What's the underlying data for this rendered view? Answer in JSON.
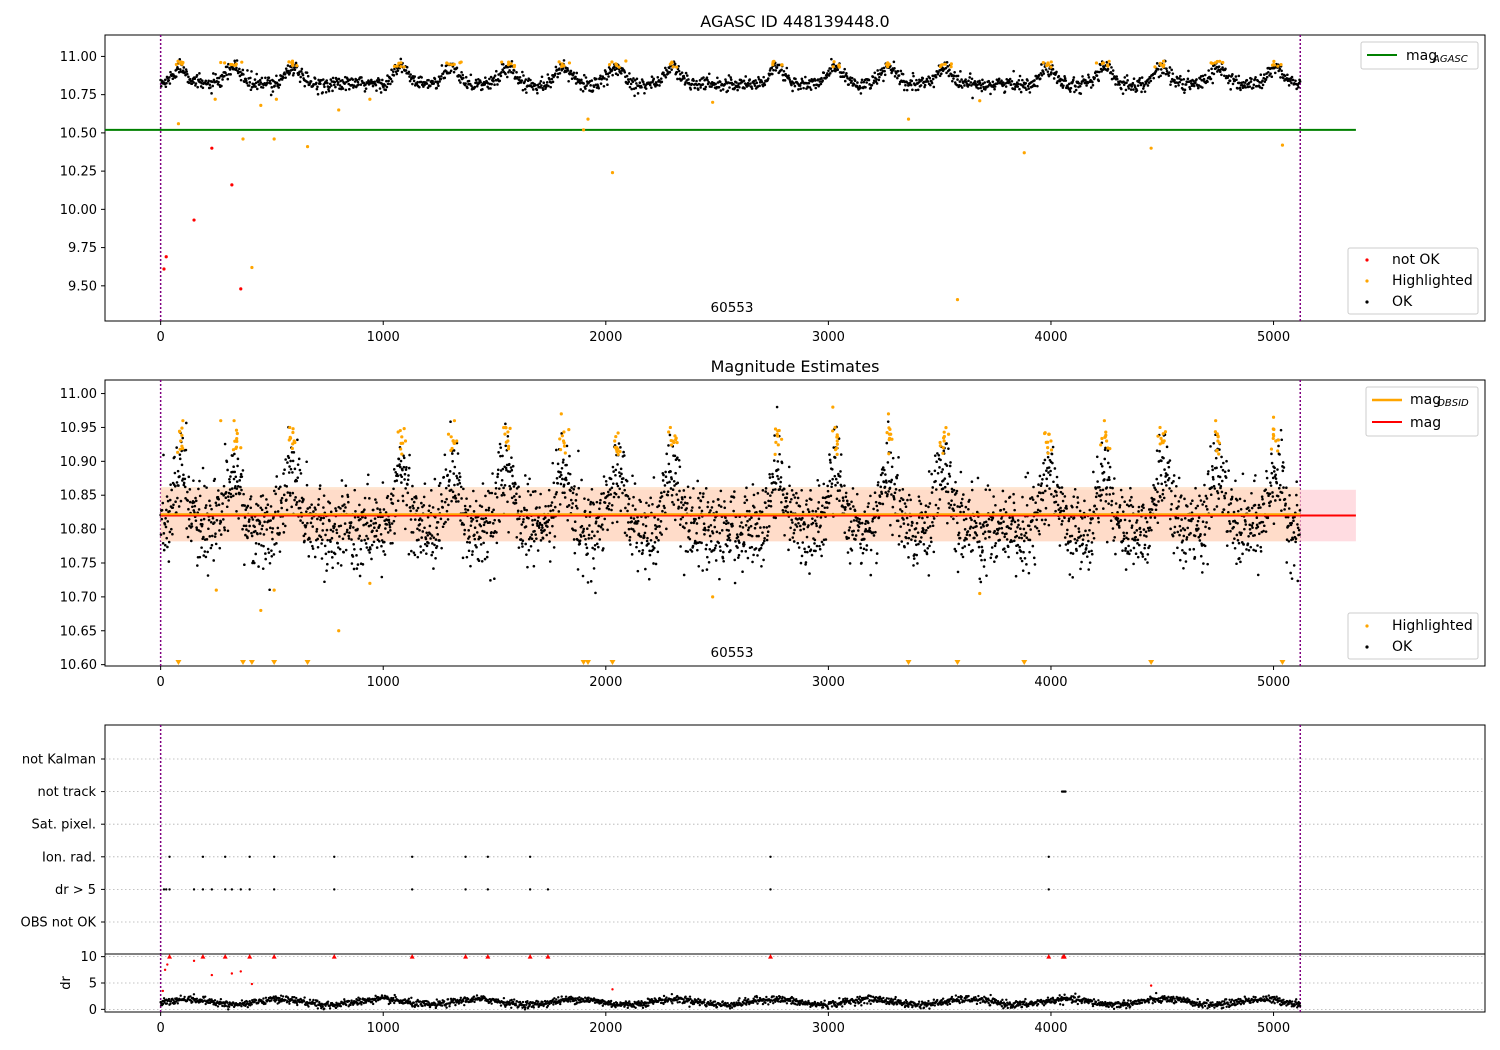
{
  "colors": {
    "ok": "#000000",
    "highlighted": "#ffa500",
    "not_ok": "#ff0000",
    "agasc_line": "#008000",
    "obsid_line": "#ffa500",
    "mag_line": "#ff0000",
    "mag_band": "#ffc0c8",
    "obsid_band": "#ffdcc0",
    "vline": "#800080",
    "grid": "#b0b0b0"
  },
  "x_ticks": [
    "0",
    "1000",
    "2000",
    "3000",
    "4000",
    "5000"
  ],
  "chart_data": [
    {
      "type": "scatter",
      "title": "AGASC ID 448139448.0",
      "xlabel": "",
      "ylabel": "",
      "xlim": [
        -250,
        5950
      ],
      "ylim": [
        9.27,
        11.14
      ],
      "y_ticks": [
        "9.50",
        "9.75",
        "10.00",
        "10.25",
        "10.50",
        "10.75",
        "11.00"
      ],
      "annotation": "60553",
      "obsid_bounds": [
        0,
        5120
      ],
      "hlines": [
        {
          "name": "mag_AGASC",
          "y": 10.52,
          "x": [
            -250,
            5370
          ]
        }
      ],
      "legend_lines": [
        {
          "base": "mag",
          "sub": "AGASC"
        }
      ],
      "legend_points": [
        "not OK",
        "Highlighted",
        "OK"
      ],
      "series": [
        {
          "name": "not OK",
          "x": [
            15,
            25,
            150,
            230,
            320,
            360
          ],
          "y": [
            9.61,
            9.69,
            9.93,
            10.4,
            10.16,
            9.48
          ]
        },
        {
          "name": "Highlighted",
          "x": [
            80,
            100,
            245,
            270,
            340,
            370,
            410,
            450,
            510,
            520,
            660,
            800,
            940,
            1900,
            1920,
            2030,
            2060,
            2480,
            3360,
            3580,
            3680,
            3880,
            4000,
            4450,
            5040
          ],
          "y": [
            10.56,
            10.96,
            10.72,
            10.96,
            10.95,
            10.46,
            9.62,
            10.68,
            10.46,
            10.72,
            10.41,
            10.65,
            10.72,
            10.52,
            10.59,
            10.24,
            10.93,
            10.7,
            10.59,
            9.41,
            10.71,
            10.37,
            10.93,
            10.4,
            10.42
          ]
        },
        {
          "name": "OK",
          "x": [
            0,
            5120
          ],
          "mean": 10.82,
          "spread": 0.045,
          "periodic_amplitude": 0.05,
          "peaks_x": [
            90,
            330,
            590,
            1080,
            1310,
            1560,
            1810,
            2050,
            2300,
            2770,
            3030,
            3270,
            3520,
            3990,
            4240,
            4500,
            4750,
            5010
          ]
        }
      ]
    },
    {
      "type": "scatter",
      "title": "Magnitude Estimates",
      "xlabel": "",
      "ylabel": "",
      "xlim": [
        -250,
        5950
      ],
      "ylim": [
        10.598,
        11.02
      ],
      "y_ticks": [
        "10.60",
        "10.65",
        "10.70",
        "10.75",
        "10.80",
        "10.85",
        "10.90",
        "10.95",
        "11.00"
      ],
      "annotation": "60553",
      "obsid_bounds": [
        0,
        5120
      ],
      "hlines": [
        {
          "name": "mag_OBSID",
          "y": 10.822,
          "x": [
            0,
            5120
          ]
        },
        {
          "name": "mag",
          "y": 10.82,
          "x": [
            0,
            5370
          ]
        }
      ],
      "bands": [
        {
          "name": "mag",
          "y": [
            10.782,
            10.858
          ],
          "x": [
            0,
            5370
          ]
        },
        {
          "name": "mag_OBSID",
          "y": [
            10.782,
            10.862
          ],
          "x": [
            0,
            5120
          ]
        }
      ],
      "legend_lines": [
        {
          "base": "mag",
          "sub": "OBSID"
        },
        {
          "base": "mag",
          "sub": ""
        }
      ],
      "legend_points": [
        "Highlighted",
        "OK"
      ],
      "series": [
        {
          "name": "Highlighted",
          "x": [
            90,
            100,
            250,
            270,
            330,
            340,
            360,
            450,
            510,
            580,
            600,
            800,
            940,
            1100,
            1320,
            1330,
            1550,
            1560,
            1800,
            1810,
            2040,
            2050,
            2290,
            2300,
            2480,
            2770,
            3020,
            3030,
            3040,
            3270,
            3280,
            3520,
            3540,
            3680,
            3990,
            4000,
            4240,
            4250,
            4490,
            4500,
            4740,
            4750,
            5000,
            5010
          ],
          "y": [
            10.93,
            10.96,
            10.71,
            10.96,
            10.96,
            10.93,
            10.92,
            10.68,
            10.71,
            10.95,
            10.93,
            10.65,
            10.72,
            10.93,
            10.96,
            10.93,
            10.95,
            10.93,
            10.97,
            10.93,
            10.93,
            10.92,
            10.95,
            10.93,
            10.7,
            10.94,
            10.98,
            10.95,
            10.93,
            10.97,
            10.94,
            10.93,
            10.94,
            10.705,
            10.94,
            10.93,
            10.96,
            10.93,
            10.95,
            10.93,
            10.96,
            10.93,
            10.965,
            10.93
          ]
        },
        {
          "name": "Highlighted (below axis)",
          "x": [
            80,
            370,
            410,
            510,
            660,
            1900,
            1920,
            2030,
            3360,
            3580,
            3880,
            4450,
            5040
          ],
          "y": [
            10.6,
            10.6,
            10.6,
            10.6,
            10.6,
            10.6,
            10.6,
            10.6,
            10.6,
            10.6,
            10.6,
            10.6,
            10.6
          ]
        },
        {
          "name": "OK",
          "x": [
            0,
            5120
          ],
          "mean": 10.82,
          "spread": 0.045,
          "periodic_amplitude": 0.05
        }
      ]
    },
    {
      "type": "scatter",
      "title": "",
      "xlabel": "",
      "ylabel": "",
      "xlim": [
        -250,
        5950
      ],
      "categories": [
        "not Kalman",
        "not track",
        "Sat. pixel.",
        "Ion. rad.",
        "dr > 5",
        "OBS not OK"
      ],
      "obsid_bounds": [
        0,
        5120
      ],
      "series": [
        {
          "name": "not track",
          "x": [
            4050,
            4055,
            4060,
            4065
          ]
        },
        {
          "name": "Ion. rad.",
          "x": [
            40,
            190,
            290,
            400,
            510,
            780,
            1130,
            1370,
            1470,
            1660,
            2740,
            3990
          ]
        },
        {
          "name": "dr > 5",
          "x": [
            15,
            25,
            40,
            150,
            190,
            230,
            290,
            320,
            360,
            400,
            510,
            780,
            1130,
            1370,
            1470,
            1660,
            1740,
            2740,
            3990
          ]
        }
      ]
    },
    {
      "type": "scatter",
      "title": "",
      "xlabel": "",
      "ylabel": "dr",
      "xlim": [
        -250,
        5950
      ],
      "ylim": [
        -0.5,
        10.5
      ],
      "y_ticks": [
        "0",
        "5",
        "10"
      ],
      "obsid_bounds": [
        0,
        5120
      ],
      "series": [
        {
          "name": "dr > 5 (clipped)",
          "x": [
            40,
            190,
            290,
            400,
            510,
            780,
            1130,
            1370,
            1470,
            1660,
            1740,
            2740,
            3990,
            4055,
            4060
          ],
          "y": [
            10,
            10,
            10,
            10,
            10,
            10,
            10,
            10,
            10,
            10,
            10,
            10,
            10,
            10,
            10
          ]
        },
        {
          "name": "not OK",
          "x": [
            10,
            20,
            30,
            150,
            230,
            320,
            360,
            410,
            2030,
            4450
          ],
          "y": [
            3.5,
            7.5,
            8.5,
            9.2,
            6.5,
            6.8,
            7.2,
            4.8,
            3.8,
            4.5
          ]
        },
        {
          "name": "OK",
          "x": [
            0,
            5120
          ],
          "mean": 1.4,
          "spread": 0.5,
          "periodic_amplitude": 0.5
        }
      ]
    }
  ]
}
